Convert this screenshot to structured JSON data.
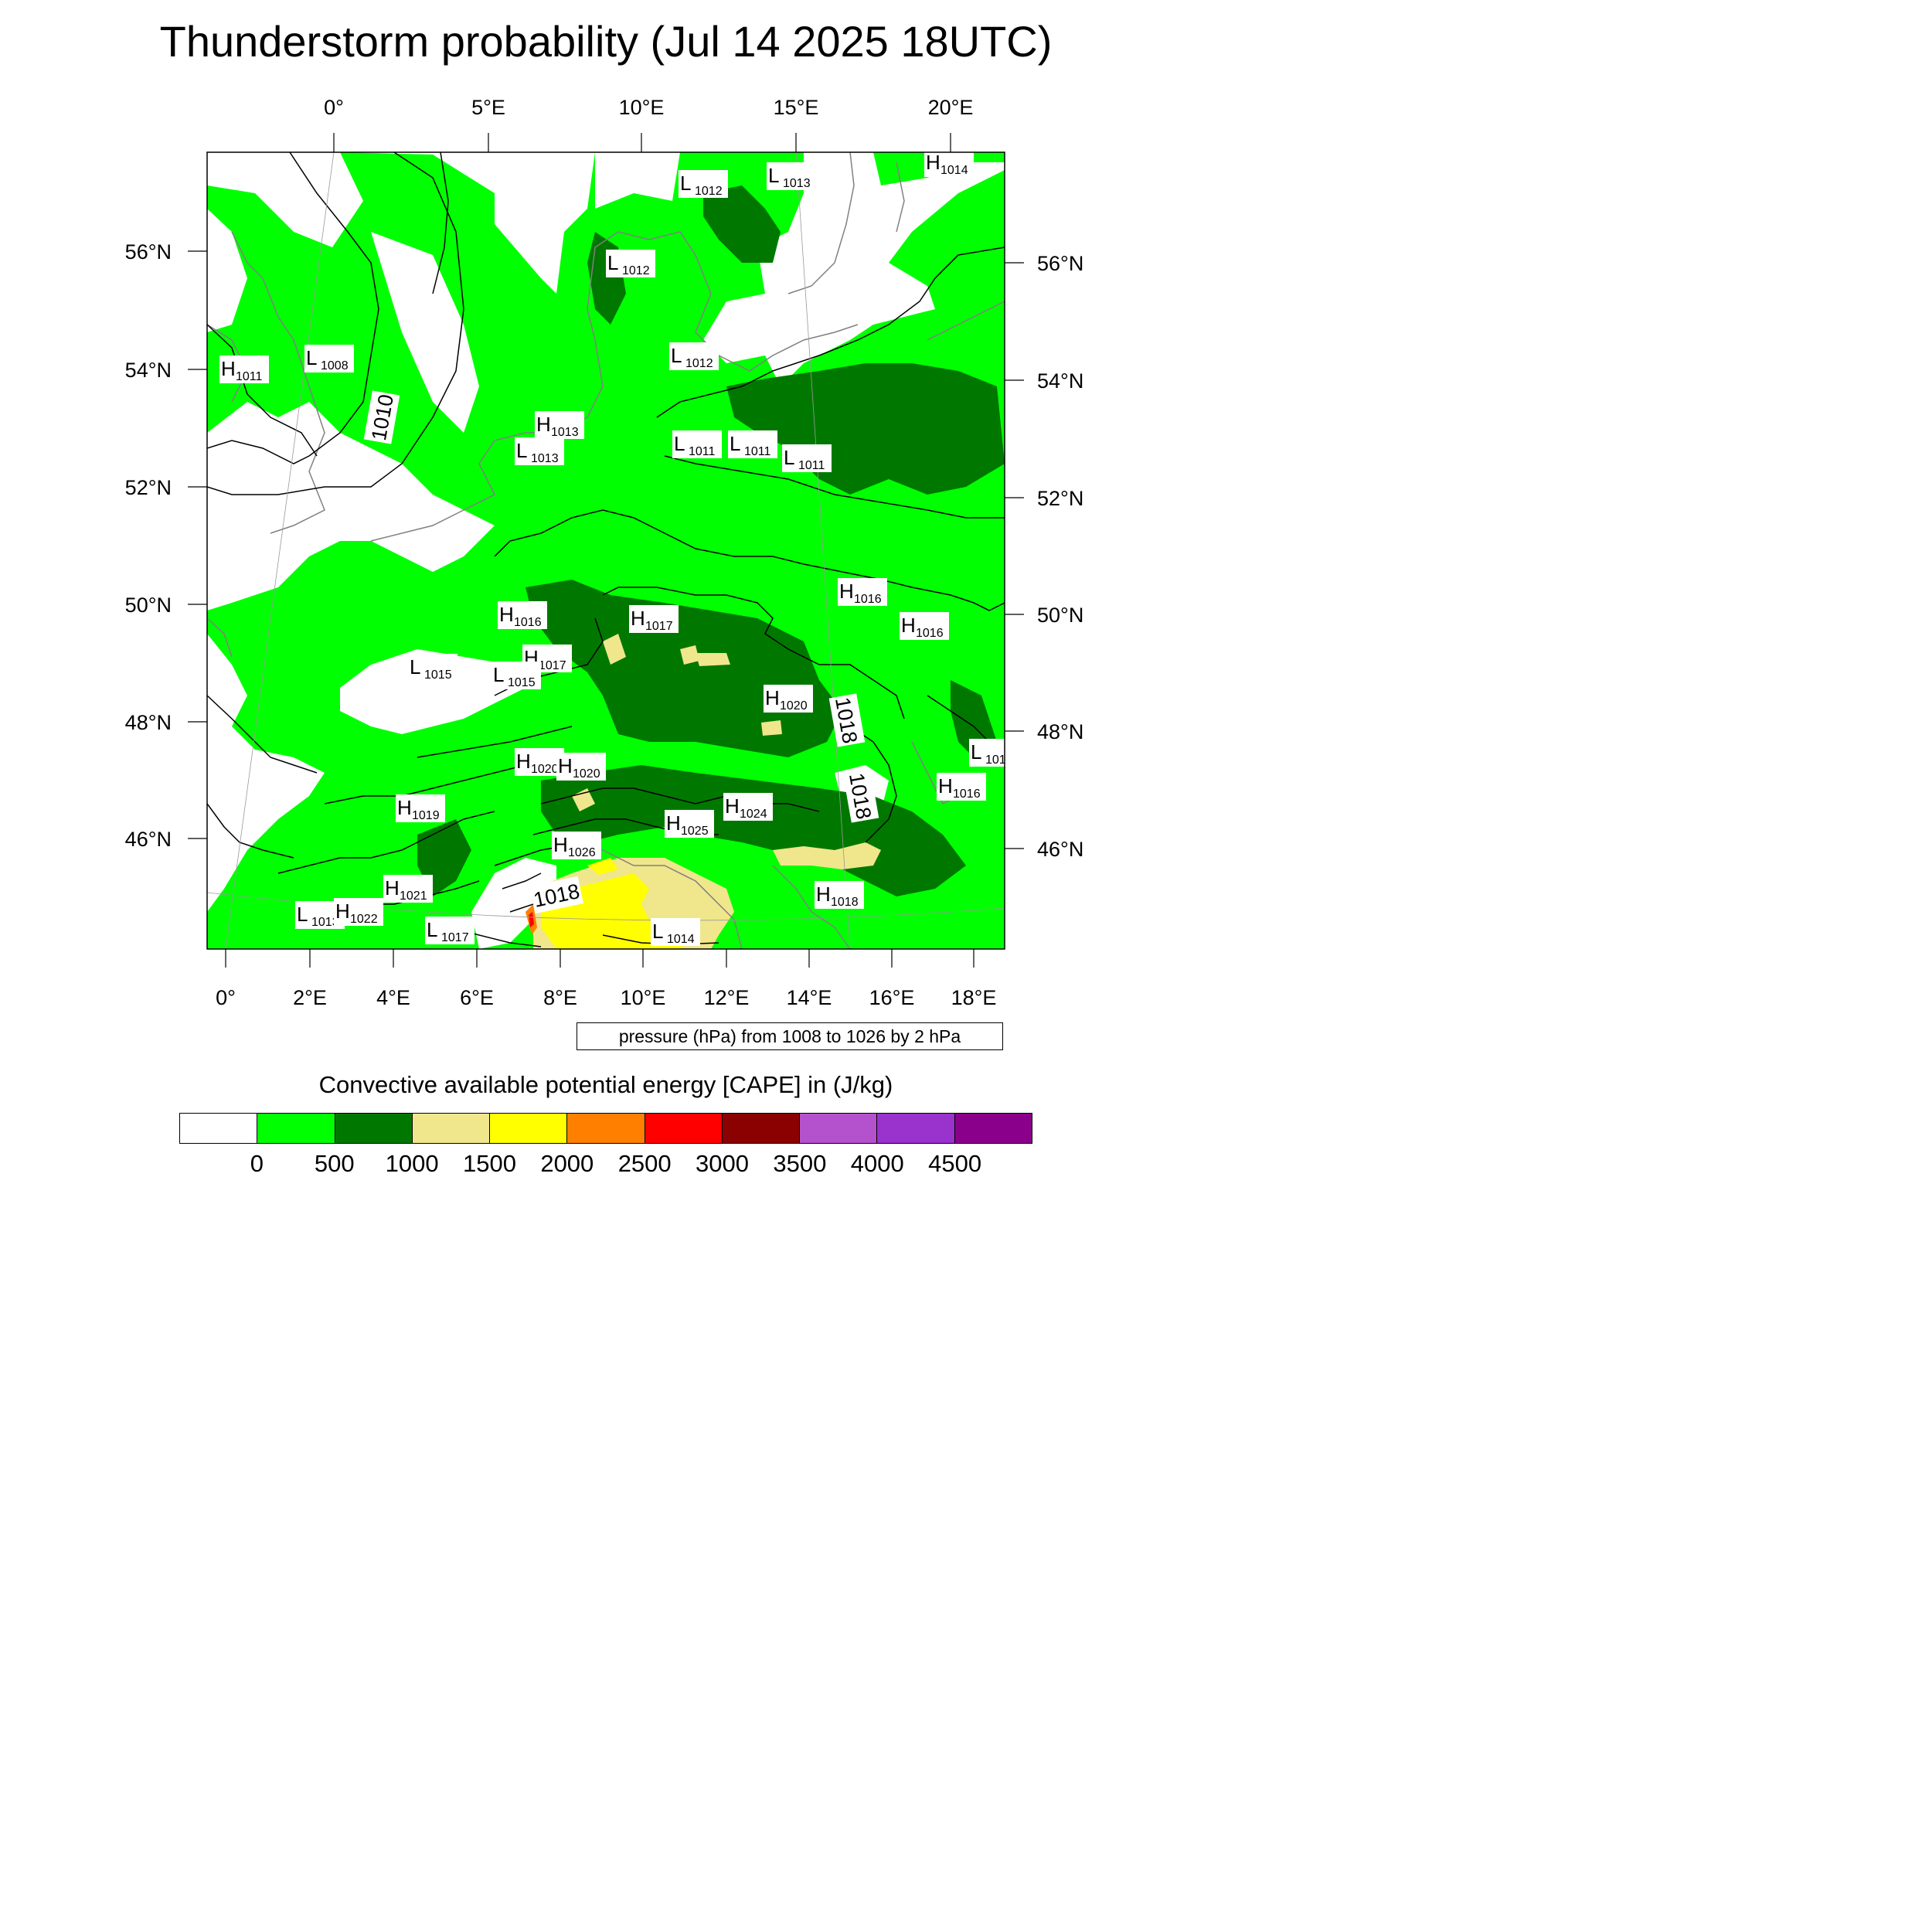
{
  "title": "Thunderstorm probability (Jul 14 2025 18UTC)",
  "map": {
    "top_lon_labels": [
      "0°",
      "5°E",
      "10°E",
      "15°E",
      "20°E"
    ],
    "bottom_lon_labels": [
      "0°",
      "2°E",
      "4°E",
      "6°E",
      "8°E",
      "10°E",
      "12°E",
      "14°E",
      "16°E",
      "18°E"
    ],
    "left_lat_labels": [
      "56°N",
      "54°N",
      "52°N",
      "50°N",
      "48°N",
      "46°N"
    ],
    "right_lat_labels": [
      "56°N",
      "54°N",
      "52°N",
      "50°N",
      "48°N",
      "46°N"
    ],
    "pressure_centers": [
      {
        "type": "H",
        "value": "1014"
      },
      {
        "type": "L",
        "value": "1012"
      },
      {
        "type": "L",
        "value": "1013"
      },
      {
        "type": "L",
        "value": "1012"
      },
      {
        "type": "H",
        "value": "1011"
      },
      {
        "type": "L",
        "value": "1008"
      },
      {
        "type": "L",
        "value": "1012"
      },
      {
        "type": "H",
        "value": "1013"
      },
      {
        "type": "L",
        "value": "1013"
      },
      {
        "type": "L",
        "value": "1011"
      },
      {
        "type": "L",
        "value": "1011"
      },
      {
        "type": "L",
        "value": "1011"
      },
      {
        "type": "H",
        "value": "1016"
      },
      {
        "type": "H",
        "value": "1016"
      },
      {
        "type": "H",
        "value": "1016"
      },
      {
        "type": "H",
        "value": "1017"
      },
      {
        "type": "H",
        "value": "1017"
      },
      {
        "type": "L",
        "value": "1015"
      },
      {
        "type": "L",
        "value": "1015"
      },
      {
        "type": "H",
        "value": "1020"
      },
      {
        "type": "H",
        "value": "1020"
      },
      {
        "type": "H",
        "value": "1020"
      },
      {
        "type": "L",
        "value": "101"
      },
      {
        "type": "H",
        "value": "1016"
      },
      {
        "type": "H",
        "value": "1019"
      },
      {
        "type": "H",
        "value": "1024"
      },
      {
        "type": "H",
        "value": "1025"
      },
      {
        "type": "H",
        "value": "1026"
      },
      {
        "type": "H",
        "value": "1021"
      },
      {
        "type": "H",
        "value": "1018"
      },
      {
        "type": "L",
        "value": "1013"
      },
      {
        "type": "H",
        "value": "1022"
      },
      {
        "type": "L",
        "value": "1017"
      },
      {
        "type": "L",
        "value": "1014"
      }
    ],
    "isobar_labels": [
      "1010",
      "1018",
      "1018",
      "1018"
    ]
  },
  "info_box": "pressure (hPa) from 1008 to 1026 by 2 hPa",
  "colorbar": {
    "title": "Convective available potential energy [CAPE] in (J/kg)",
    "colors": [
      "#ffffff",
      "#00ff00",
      "#007800",
      "#f0e68c",
      "#ffff00",
      "#ff8000",
      "#ff0000",
      "#8b0000",
      "#b452cd",
      "#9a32cd",
      "#8b008b"
    ],
    "labels": [
      "0",
      "500",
      "1000",
      "1500",
      "2000",
      "2500",
      "3000",
      "3500",
      "4000",
      "4500"
    ]
  }
}
